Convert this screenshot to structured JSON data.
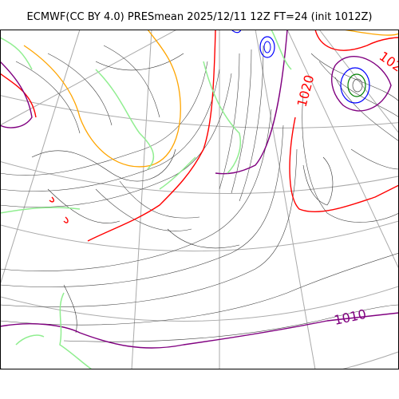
{
  "title": "ECMWF(CC BY 4.0) PRESmean 2025/12/11 12Z FT=24 (init 1012Z)",
  "contour_labels": [
    {
      "text": "1020",
      "color": "#ff0000"
    },
    {
      "text": "1010",
      "color": "#800080"
    },
    {
      "text": "102",
      "color": "#ff0000"
    }
  ],
  "colors": {
    "isobar": "#444444",
    "isobar_1020": "#ff0000",
    "isobar_1010": "#800080",
    "isobar_high": "#0000ff",
    "coast": "#333333",
    "graticule": "#aaaaaa",
    "snow_line": "#90ee90",
    "orange_line": "#ffa500",
    "frame": "#000000"
  }
}
